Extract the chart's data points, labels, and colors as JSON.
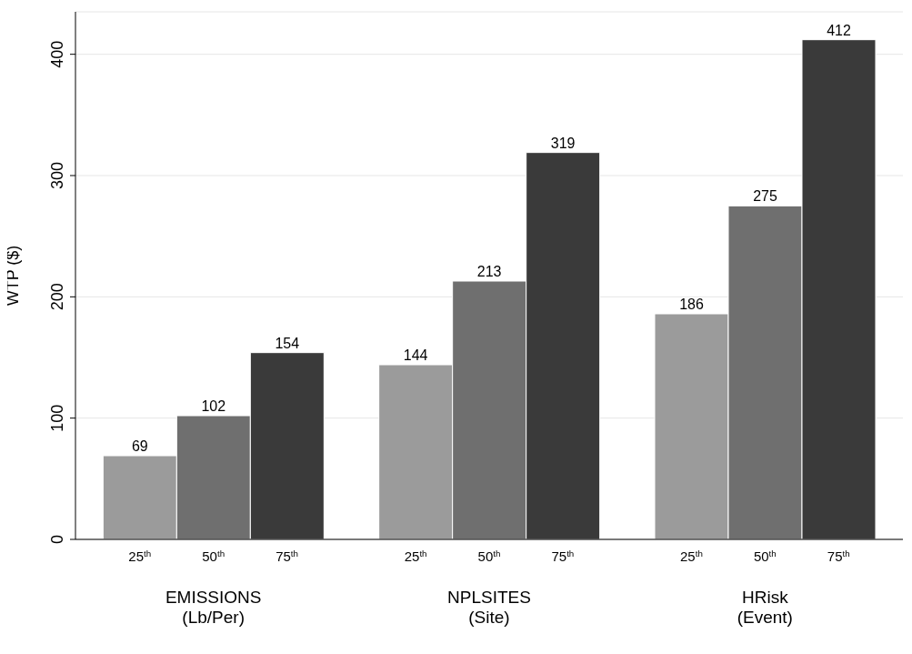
{
  "chart_data": {
    "type": "bar",
    "ylabel": "WTP ($)",
    "categories": [
      "EMISSIONS\n(Lb/Per)",
      "NPLSITES\n(Site)",
      "HRisk\n(Event)"
    ],
    "series": [
      {
        "name": "25$^{th}$",
        "color": "#9b9b9b",
        "values": [
          69,
          144,
          186
        ]
      },
      {
        "name": "50$^{th}$",
        "color": "#6f6f6f",
        "values": [
          102,
          213,
          275
        ]
      },
      {
        "name": "75$^{th}$",
        "color": "#3a3a3a",
        "values": [
          154,
          319,
          412
        ]
      }
    ],
    "ylim": [
      0,
      435
    ],
    "yticks": [
      0,
      100,
      200,
      300,
      400
    ],
    "grid": "y",
    "data_labels": true
  }
}
